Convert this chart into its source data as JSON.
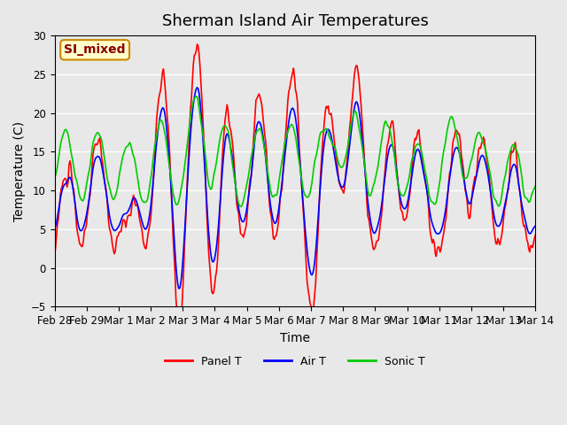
{
  "title": "Sherman Island Air Temperatures",
  "xlabel": "Time",
  "ylabel": "Temperature (C)",
  "ylim": [
    -5,
    30
  ],
  "yticks": [
    -5,
    0,
    5,
    10,
    15,
    20,
    25,
    30
  ],
  "xtick_labels": [
    "Feb 28",
    "Feb 29",
    "Mar 1",
    "Mar 2",
    "Mar 3",
    "Mar 4",
    "Mar 5",
    "Mar 6",
    "Mar 7",
    "Mar 8",
    "Mar 9",
    "Mar 10",
    "Mar 11",
    "Mar 12",
    "Mar 13",
    "Mar 14"
  ],
  "background_color": "#e8e8e8",
  "plot_bg_color": "#e8e8e8",
  "panel_color": "#ff0000",
  "air_color": "#0000ff",
  "sonic_color": "#00cc00",
  "legend_labels": [
    "Panel T",
    "Air T",
    "Sonic T"
  ],
  "annotation_text": "SI_mixed",
  "annotation_bg": "#ffffcc",
  "annotation_border": "#cc8800",
  "annotation_text_color": "#880000",
  "title_fontsize": 13,
  "axis_label_fontsize": 10,
  "tick_fontsize": 8.5,
  "line_width": 1.2,
  "n_points": 500,
  "grid_color": "#ffffff",
  "fig_bg": "#e8e8e8"
}
